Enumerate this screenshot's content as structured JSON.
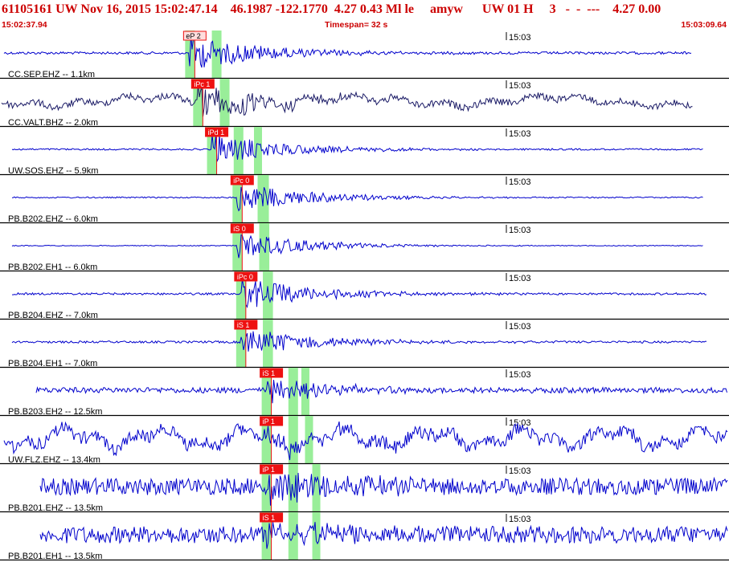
{
  "header": {
    "title": "61105161 UW Nov 16, 2015 15:02:47.14    46.1987 -122.1770  4.27 0.43 Ml le     amyw      UW 01 H     3   -  -  ---    4.27 0.00",
    "start_time": "15:02:37.94",
    "timespan": "Timespan=  32 s",
    "end_time": "15:03:09.64"
  },
  "colors": {
    "title": "#cc0000",
    "trace": "#0000cc",
    "trace_alt": "#1a1a66",
    "pick_window": "#99ee99",
    "pick_flag": "#ee1111",
    "divider": "#000000"
  },
  "tick_label": "15:03",
  "channels": [
    {
      "label": "CC.SEP.EHZ -- 1.1km",
      "pick": "eP 2",
      "pick_style": "outline",
      "trace": "trace",
      "amp": 0.6,
      "noise": 0.06,
      "onset": 0.265,
      "secondary": null
    },
    {
      "label": "CC.VALT.BHZ -- 2.0km",
      "pick": "iPc 1",
      "pick_style": "filled",
      "trace": "trace_alt",
      "amp": 0.6,
      "noise": 0.16,
      "onset": 0.276,
      "secondary": null
    },
    {
      "label": "UW.SOS.EHZ -- 5.9km",
      "pick": "iPd 1",
      "pick_style": "filled",
      "trace": "trace",
      "amp": 0.55,
      "noise": 0.04,
      "onset": 0.295,
      "secondary": 0.355
    },
    {
      "label": "PB.B202.EHZ -- 6.0km",
      "pick": "iPc 0",
      "pick_style": "filled",
      "trace": "trace",
      "amp": 0.5,
      "noise": 0.03,
      "onset": 0.33,
      "secondary": 0.36
    },
    {
      "label": "PB.B202.EH1 -- 6.0km",
      "pick": "iS 0",
      "pick_style": "filled",
      "trace": "trace",
      "amp": 0.45,
      "noise": 0.02,
      "onset": 0.33,
      "secondary": 0.365
    },
    {
      "label": "PB.B204.EHZ -- 7.0km",
      "pick": "iPc 0",
      "pick_style": "filled",
      "trace": "trace",
      "amp": 0.55,
      "noise": 0.05,
      "onset": 0.335,
      "secondary": 0.37
    },
    {
      "label": "PB.B204.EH1 -- 7.0km",
      "pick": "iS 1",
      "pick_style": "filled",
      "trace": "trace",
      "amp": 0.5,
      "noise": 0.05,
      "onset": 0.335,
      "secondary": 0.37
    },
    {
      "label": "PB.B203.EH2 -- 12.5km",
      "pick": "iS 1",
      "pick_style": "filled",
      "trace": "trace",
      "amp": 0.4,
      "noise": 0.13,
      "onset": 0.37,
      "secondary": 0.42
    },
    {
      "label": "UW.FLZ.EHZ -- 13.4km",
      "pick": "iP 1",
      "pick_style": "filled",
      "trace": "trace",
      "amp": 0.3,
      "noise": 0.3,
      "onset": 0.37,
      "secondary": 0.425
    },
    {
      "label": "PB.B201.EHZ -- 13.5km",
      "pick": "iP 1",
      "pick_style": "filled",
      "trace": "trace",
      "amp": 0.5,
      "noise": 0.4,
      "onset": 0.37,
      "secondary": 0.435
    },
    {
      "label": "PB.B201.EH1 -- 13.5km",
      "pick": "iS 1",
      "pick_style": "filled",
      "trace": "trace",
      "amp": 0.5,
      "noise": 0.4,
      "onset": 0.37,
      "secondary": 0.435
    }
  ]
}
